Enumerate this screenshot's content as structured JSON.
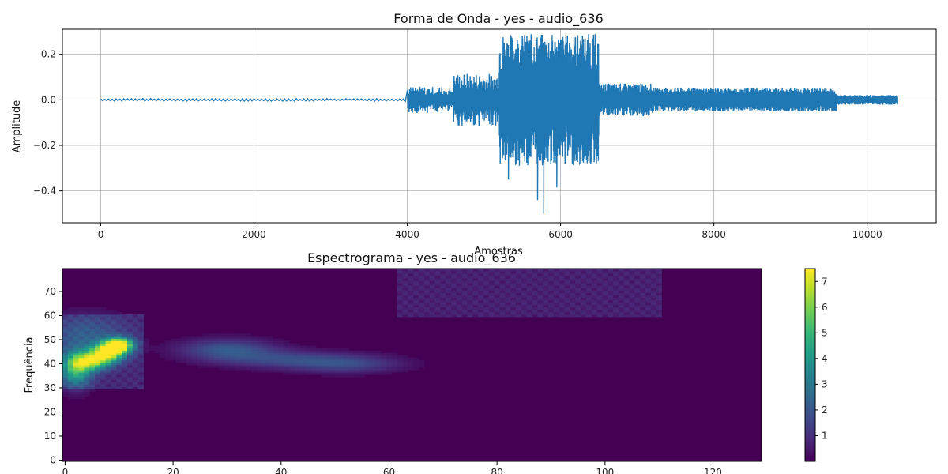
{
  "chart_data": [
    {
      "type": "line",
      "title": "Forma de Onda - yes - audio_636",
      "xlabel": "Amostras",
      "ylabel": "Amplitude",
      "xlim": [
        -500,
        10900
      ],
      "ylim": [
        -0.54,
        0.31
      ],
      "x_ticks": [
        0,
        2000,
        4000,
        6000,
        8000,
        10000
      ],
      "y_ticks": [
        0.2,
        0.0,
        -0.2,
        -0.4
      ],
      "y_tick_labels": [
        "0.2",
        "0.0",
        "−0.2",
        "−0.4"
      ],
      "grid": true,
      "color": "#1f77b4",
      "series": [
        {
          "segments": [
            {
              "x0": 0,
              "x1": 4000,
              "amp": 0.004,
              "cycles": 40
            },
            {
              "x0": 4000,
              "x1": 4600,
              "amp": 0.04,
              "cycles": 20
            },
            {
              "x0": 4600,
              "x1": 5200,
              "amp": 0.08,
              "cycles": 30
            },
            {
              "x0": 5200,
              "x1": 6500,
              "amp": 0.2,
              "cycles": 130
            },
            {
              "x0": 6500,
              "x1": 7200,
              "amp": 0.05,
              "cycles": 60
            },
            {
              "x0": 7200,
              "x1": 9600,
              "amp": 0.035,
              "cycles": 300
            },
            {
              "x0": 9600,
              "x1": 10400,
              "amp": 0.015,
              "cycles": 90
            }
          ],
          "peaks": [
            {
              "x": 5250,
              "y": 0.275
            },
            {
              "x": 5780,
              "y": -0.5
            },
            {
              "x": 5700,
              "y": -0.44
            },
            {
              "x": 5950,
              "y": -0.385
            },
            {
              "x": 5550,
              "y": 0.255
            },
            {
              "x": 6250,
              "y": -0.28
            },
            {
              "x": 5320,
              "y": -0.35
            },
            {
              "x": 6050,
              "y": 0.12
            }
          ]
        }
      ]
    },
    {
      "type": "heatmap",
      "title": "Espectrograma - yes - audio_636",
      "xlabel": "",
      "ylabel": "Frequência",
      "xlim": [
        -0.5,
        129
      ],
      "ylim": [
        -0.5,
        79.5
      ],
      "x_ticks": [
        0,
        20,
        40,
        60,
        80,
        100,
        120
      ],
      "y_ticks": [
        0,
        10,
        20,
        30,
        40,
        50,
        60,
        70
      ],
      "colormap": "viridis",
      "colorbar": {
        "min": 0,
        "max": 7.5,
        "ticks": [
          1,
          2,
          3,
          4,
          5,
          6,
          7
        ]
      },
      "grid": false,
      "features": [
        {
          "kind": "blob",
          "x": 2,
          "y": 38,
          "sx": 2,
          "sy": 5,
          "v": 4.2
        },
        {
          "kind": "blob",
          "x": 5,
          "y": 41,
          "sx": 2.5,
          "sy": 2.5,
          "v": 4.8
        },
        {
          "kind": "blob",
          "x": 8,
          "y": 45,
          "sx": 2.2,
          "sy": 2.5,
          "v": 6.5
        },
        {
          "kind": "blob",
          "x": 10,
          "y": 48,
          "sx": 1.8,
          "sy": 2,
          "v": 6.8
        },
        {
          "kind": "blob",
          "x": 4,
          "y": 52,
          "sx": 5,
          "sy": 6,
          "v": 1.4
        },
        {
          "kind": "blob",
          "x": 30,
          "y": 46,
          "sx": 6,
          "sy": 3,
          "v": 2.0
        },
        {
          "kind": "blob",
          "x": 40,
          "y": 42,
          "sx": 8,
          "sy": 2.5,
          "v": 1.4
        },
        {
          "kind": "blob",
          "x": 52,
          "y": 40,
          "sx": 7,
          "sy": 2.5,
          "v": 1.6
        },
        {
          "kind": "band",
          "x0": 62,
          "x1": 110,
          "y0": 60,
          "y1": 80,
          "v": 0.8
        },
        {
          "kind": "band",
          "x0": 0,
          "x1": 14,
          "y0": 30,
          "y1": 60,
          "v": 1.0
        }
      ]
    }
  ]
}
